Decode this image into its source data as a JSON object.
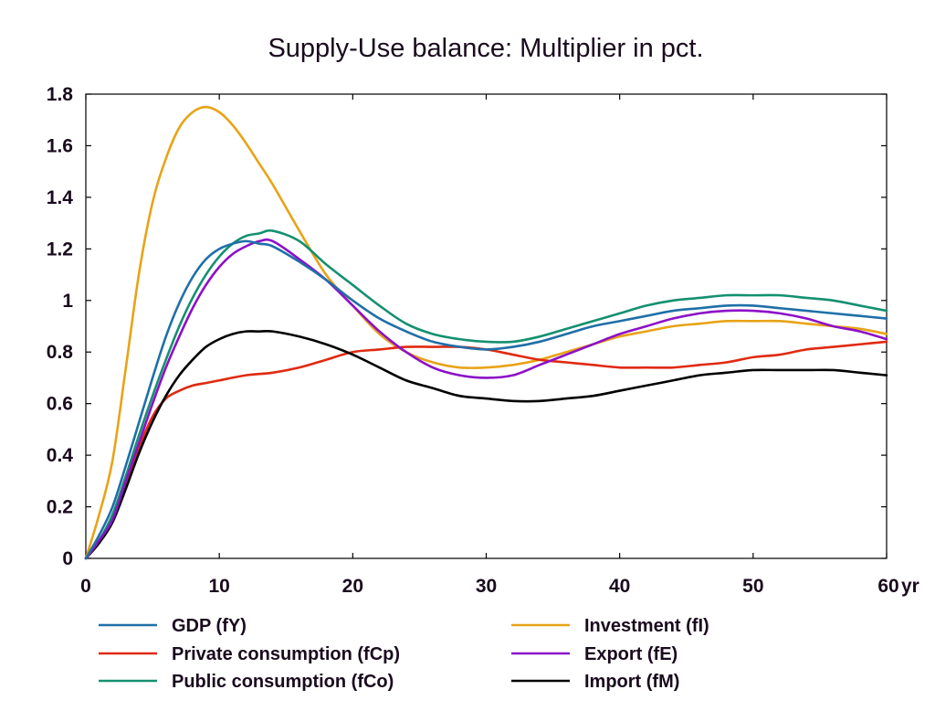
{
  "chart_data": {
    "type": "line",
    "title": "Supply-Use balance: Multiplier in pct.",
    "xlabel": "",
    "ylabel": "",
    "x_unit_label": "yr",
    "xlim": [
      0,
      60
    ],
    "ylim": [
      0,
      1.8
    ],
    "x_ticks": [
      0,
      10,
      20,
      30,
      40,
      50,
      60
    ],
    "x_tick_labels": [
      "0",
      "10",
      "20",
      "30",
      "40",
      "50",
      "60"
    ],
    "y_ticks": [
      0,
      0.2,
      0.4,
      0.6,
      0.8,
      1.0,
      1.2,
      1.4,
      1.6,
      1.8
    ],
    "y_tick_labels": [
      "0",
      "0.2",
      "0.4",
      "0.6",
      "0.8",
      "1",
      "1.2",
      "1.4",
      "1.6",
      "1.8"
    ],
    "grid": false,
    "legend_position": "bottom",
    "series": [
      {
        "name": "GDP (fY)",
        "color": "#1f6fa8",
        "points": [
          [
            0,
            0
          ],
          [
            1,
            0.09
          ],
          [
            2,
            0.2
          ],
          [
            3,
            0.36
          ],
          [
            4,
            0.53
          ],
          [
            5,
            0.7
          ],
          [
            6,
            0.86
          ],
          [
            7,
            0.99
          ],
          [
            8,
            1.09
          ],
          [
            9,
            1.16
          ],
          [
            10,
            1.2
          ],
          [
            11,
            1.22
          ],
          [
            12,
            1.23
          ],
          [
            13,
            1.22
          ],
          [
            14,
            1.21
          ],
          [
            16,
            1.15
          ],
          [
            18,
            1.08
          ],
          [
            20,
            1.0
          ],
          [
            22,
            0.93
          ],
          [
            24,
            0.88
          ],
          [
            26,
            0.84
          ],
          [
            28,
            0.82
          ],
          [
            30,
            0.81
          ],
          [
            32,
            0.82
          ],
          [
            34,
            0.84
          ],
          [
            36,
            0.87
          ],
          [
            38,
            0.9
          ],
          [
            40,
            0.92
          ],
          [
            42,
            0.94
          ],
          [
            44,
            0.96
          ],
          [
            46,
            0.97
          ],
          [
            48,
            0.98
          ],
          [
            50,
            0.98
          ],
          [
            52,
            0.97
          ],
          [
            54,
            0.96
          ],
          [
            56,
            0.95
          ],
          [
            58,
            0.94
          ],
          [
            60,
            0.93
          ]
        ]
      },
      {
        "name": "Investment (fI)",
        "color": "#e8a317",
        "points": [
          [
            0,
            0
          ],
          [
            1,
            0.17
          ],
          [
            2,
            0.38
          ],
          [
            3,
            0.74
          ],
          [
            4,
            1.11
          ],
          [
            5,
            1.38
          ],
          [
            6,
            1.55
          ],
          [
            7,
            1.67
          ],
          [
            8,
            1.73
          ],
          [
            9,
            1.75
          ],
          [
            10,
            1.73
          ],
          [
            11,
            1.68
          ],
          [
            12,
            1.61
          ],
          [
            13,
            1.53
          ],
          [
            14,
            1.45
          ],
          [
            16,
            1.27
          ],
          [
            18,
            1.1
          ],
          [
            20,
            0.98
          ],
          [
            22,
            0.87
          ],
          [
            24,
            0.8
          ],
          [
            26,
            0.76
          ],
          [
            28,
            0.74
          ],
          [
            30,
            0.74
          ],
          [
            32,
            0.75
          ],
          [
            34,
            0.77
          ],
          [
            36,
            0.8
          ],
          [
            38,
            0.83
          ],
          [
            40,
            0.86
          ],
          [
            42,
            0.88
          ],
          [
            44,
            0.9
          ],
          [
            46,
            0.91
          ],
          [
            48,
            0.92
          ],
          [
            50,
            0.92
          ],
          [
            52,
            0.92
          ],
          [
            54,
            0.91
          ],
          [
            56,
            0.9
          ],
          [
            58,
            0.89
          ],
          [
            60,
            0.87
          ]
        ]
      },
      {
        "name": "Private consumption (fCp)",
        "color": "#e02a10",
        "points": [
          [
            0,
            0
          ],
          [
            1,
            0.06
          ],
          [
            2,
            0.15
          ],
          [
            3,
            0.28
          ],
          [
            4,
            0.43
          ],
          [
            5,
            0.55
          ],
          [
            6,
            0.62
          ],
          [
            7,
            0.65
          ],
          [
            8,
            0.67
          ],
          [
            9,
            0.68
          ],
          [
            10,
            0.69
          ],
          [
            12,
            0.71
          ],
          [
            14,
            0.72
          ],
          [
            16,
            0.74
          ],
          [
            18,
            0.77
          ],
          [
            20,
            0.8
          ],
          [
            22,
            0.81
          ],
          [
            24,
            0.82
          ],
          [
            26,
            0.82
          ],
          [
            28,
            0.82
          ],
          [
            30,
            0.81
          ],
          [
            32,
            0.79
          ],
          [
            34,
            0.77
          ],
          [
            36,
            0.76
          ],
          [
            38,
            0.75
          ],
          [
            40,
            0.74
          ],
          [
            42,
            0.74
          ],
          [
            44,
            0.74
          ],
          [
            46,
            0.75
          ],
          [
            48,
            0.76
          ],
          [
            50,
            0.78
          ],
          [
            52,
            0.79
          ],
          [
            54,
            0.81
          ],
          [
            56,
            0.82
          ],
          [
            58,
            0.83
          ],
          [
            60,
            0.84
          ]
        ]
      },
      {
        "name": "Export (fE)",
        "color": "#8c10c8",
        "points": [
          [
            0,
            0
          ],
          [
            1,
            0.07
          ],
          [
            2,
            0.15
          ],
          [
            3,
            0.3
          ],
          [
            4,
            0.45
          ],
          [
            5,
            0.6
          ],
          [
            6,
            0.74
          ],
          [
            7,
            0.86
          ],
          [
            8,
            0.97
          ],
          [
            9,
            1.06
          ],
          [
            10,
            1.13
          ],
          [
            11,
            1.18
          ],
          [
            12,
            1.21
          ],
          [
            13,
            1.23
          ],
          [
            14,
            1.23
          ],
          [
            16,
            1.16
          ],
          [
            18,
            1.08
          ],
          [
            20,
            0.98
          ],
          [
            22,
            0.88
          ],
          [
            24,
            0.8
          ],
          [
            26,
            0.74
          ],
          [
            28,
            0.71
          ],
          [
            30,
            0.7
          ],
          [
            32,
            0.71
          ],
          [
            34,
            0.75
          ],
          [
            36,
            0.79
          ],
          [
            38,
            0.83
          ],
          [
            40,
            0.87
          ],
          [
            42,
            0.9
          ],
          [
            44,
            0.93
          ],
          [
            46,
            0.95
          ],
          [
            48,
            0.96
          ],
          [
            50,
            0.96
          ],
          [
            52,
            0.95
          ],
          [
            54,
            0.93
          ],
          [
            56,
            0.9
          ],
          [
            58,
            0.88
          ],
          [
            60,
            0.85
          ]
        ]
      },
      {
        "name": "Public consumption (fCo)",
        "color": "#149070",
        "points": [
          [
            0,
            0
          ],
          [
            1,
            0.07
          ],
          [
            2,
            0.17
          ],
          [
            3,
            0.32
          ],
          [
            4,
            0.48
          ],
          [
            5,
            0.63
          ],
          [
            6,
            0.77
          ],
          [
            7,
            0.9
          ],
          [
            8,
            1.01
          ],
          [
            9,
            1.1
          ],
          [
            10,
            1.17
          ],
          [
            11,
            1.22
          ],
          [
            12,
            1.25
          ],
          [
            13,
            1.26
          ],
          [
            14,
            1.27
          ],
          [
            16,
            1.23
          ],
          [
            18,
            1.14
          ],
          [
            20,
            1.06
          ],
          [
            22,
            0.98
          ],
          [
            24,
            0.91
          ],
          [
            26,
            0.87
          ],
          [
            28,
            0.85
          ],
          [
            30,
            0.84
          ],
          [
            32,
            0.84
          ],
          [
            34,
            0.86
          ],
          [
            36,
            0.89
          ],
          [
            38,
            0.92
          ],
          [
            40,
            0.95
          ],
          [
            42,
            0.98
          ],
          [
            44,
            1.0
          ],
          [
            46,
            1.01
          ],
          [
            48,
            1.02
          ],
          [
            50,
            1.02
          ],
          [
            52,
            1.02
          ],
          [
            54,
            1.01
          ],
          [
            56,
            1.0
          ],
          [
            58,
            0.98
          ],
          [
            60,
            0.96
          ]
        ]
      },
      {
        "name": "Import (fM)",
        "color": "#000000",
        "points": [
          [
            0,
            0
          ],
          [
            1,
            0.06
          ],
          [
            2,
            0.14
          ],
          [
            3,
            0.27
          ],
          [
            4,
            0.41
          ],
          [
            5,
            0.53
          ],
          [
            6,
            0.63
          ],
          [
            7,
            0.71
          ],
          [
            8,
            0.77
          ],
          [
            9,
            0.82
          ],
          [
            10,
            0.85
          ],
          [
            11,
            0.87
          ],
          [
            12,
            0.88
          ],
          [
            13,
            0.88
          ],
          [
            14,
            0.88
          ],
          [
            16,
            0.86
          ],
          [
            18,
            0.83
          ],
          [
            20,
            0.79
          ],
          [
            22,
            0.74
          ],
          [
            24,
            0.69
          ],
          [
            26,
            0.66
          ],
          [
            28,
            0.63
          ],
          [
            30,
            0.62
          ],
          [
            32,
            0.61
          ],
          [
            34,
            0.61
          ],
          [
            36,
            0.62
          ],
          [
            38,
            0.63
          ],
          [
            40,
            0.65
          ],
          [
            42,
            0.67
          ],
          [
            44,
            0.69
          ],
          [
            46,
            0.71
          ],
          [
            48,
            0.72
          ],
          [
            50,
            0.73
          ],
          [
            52,
            0.73
          ],
          [
            54,
            0.73
          ],
          [
            56,
            0.73
          ],
          [
            58,
            0.72
          ],
          [
            60,
            0.71
          ]
        ]
      }
    ],
    "legend": [
      {
        "series": 0,
        "label": "GDP (fY)"
      },
      {
        "series": 1,
        "label": "Investment (fI)"
      },
      {
        "series": 2,
        "label": "Private consumption (fCp)"
      },
      {
        "series": 3,
        "label": "Export (fE)"
      },
      {
        "series": 4,
        "label": "Public consumption (fCo)"
      },
      {
        "series": 5,
        "label": "Import (fM)"
      }
    ]
  }
}
